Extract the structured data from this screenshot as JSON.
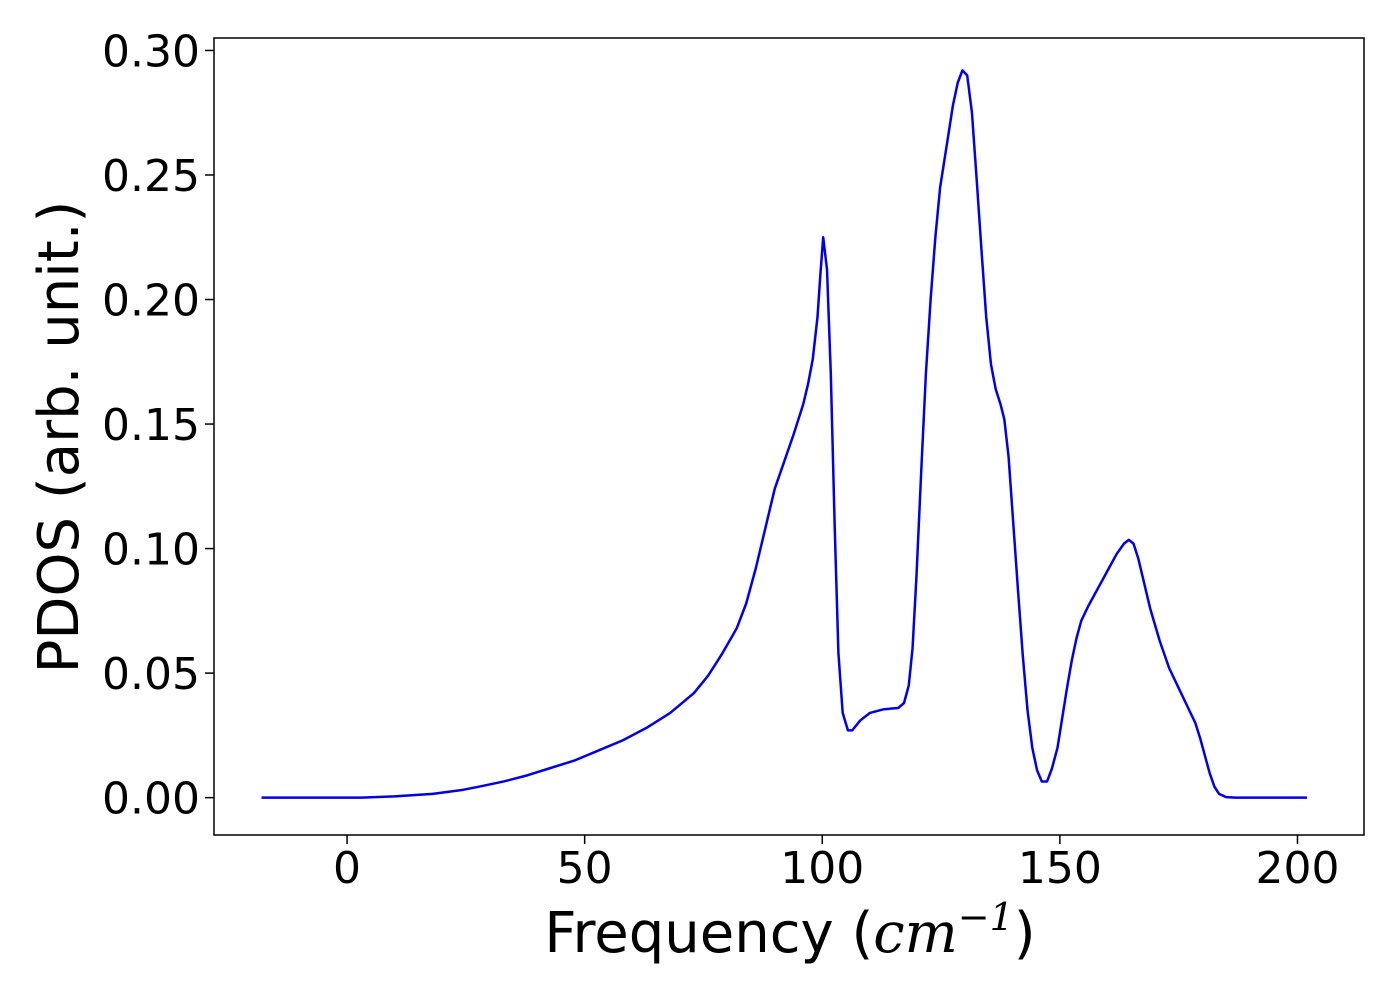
{
  "chart_data": {
    "type": "line",
    "title": "",
    "xlabel": {
      "prefix": "Frequency (",
      "unit": "cm",
      "exponent": "−1",
      "suffix": ")"
    },
    "ylabel": "PDOS (arb. unit.)",
    "xlim": [
      -28,
      214
    ],
    "ylim": [
      -0.015,
      0.305
    ],
    "xticks": [
      {
        "value": 0,
        "label": "0"
      },
      {
        "value": 50,
        "label": "50"
      },
      {
        "value": 100,
        "label": "100"
      },
      {
        "value": 150,
        "label": "150"
      },
      {
        "value": 200,
        "label": "200"
      }
    ],
    "yticks": [
      {
        "value": 0,
        "label": "0.00"
      },
      {
        "value": 0.05,
        "label": "0.05"
      },
      {
        "value": 0.1,
        "label": "0.10"
      },
      {
        "value": 0.15,
        "label": "0.15"
      },
      {
        "value": 0.2,
        "label": "0.20"
      },
      {
        "value": 0.25,
        "label": "0.25"
      },
      {
        "value": 0.3,
        "label": "0.30"
      }
    ],
    "grid": false,
    "legend": "none",
    "series": [
      {
        "color": "#0000ee",
        "points": [
          [
            -18,
            0
          ],
          [
            0,
            0
          ],
          [
            3,
            0
          ],
          [
            10,
            0.0005
          ],
          [
            18,
            0.0015
          ],
          [
            24,
            0.003
          ],
          [
            28,
            0.0045
          ],
          [
            33,
            0.0065
          ],
          [
            38,
            0.009
          ],
          [
            43,
            0.012
          ],
          [
            48,
            0.015
          ],
          [
            53,
            0.019
          ],
          [
            58,
            0.023
          ],
          [
            63,
            0.028
          ],
          [
            68,
            0.034
          ],
          [
            73,
            0.042
          ],
          [
            76,
            0.049
          ],
          [
            79,
            0.058
          ],
          [
            82,
            0.068
          ],
          [
            84,
            0.078
          ],
          [
            86,
            0.092
          ],
          [
            88,
            0.108
          ],
          [
            90,
            0.124
          ],
          [
            92,
            0.135
          ],
          [
            94,
            0.146
          ],
          [
            96,
            0.158
          ],
          [
            97,
            0.166
          ],
          [
            98,
            0.176
          ],
          [
            99,
            0.193
          ],
          [
            99.6,
            0.21
          ],
          [
            100.2,
            0.225
          ],
          [
            101,
            0.212
          ],
          [
            101.8,
            0.17
          ],
          [
            102.6,
            0.11
          ],
          [
            103.4,
            0.058
          ],
          [
            104.3,
            0.034
          ],
          [
            105.4,
            0.027
          ],
          [
            106.3,
            0.027
          ],
          [
            108,
            0.031
          ],
          [
            110,
            0.034
          ],
          [
            113,
            0.0355
          ],
          [
            116,
            0.036
          ],
          [
            117.2,
            0.038
          ],
          [
            118.2,
            0.045
          ],
          [
            119,
            0.06
          ],
          [
            119.8,
            0.088
          ],
          [
            120.8,
            0.13
          ],
          [
            121.8,
            0.17
          ],
          [
            122.8,
            0.2
          ],
          [
            123.8,
            0.225
          ],
          [
            124.8,
            0.245
          ],
          [
            126.2,
            0.262
          ],
          [
            127.5,
            0.278
          ],
          [
            128.5,
            0.287
          ],
          [
            129.5,
            0.292
          ],
          [
            130.5,
            0.29
          ],
          [
            131.5,
            0.275
          ],
          [
            132.5,
            0.248
          ],
          [
            133.5,
            0.22
          ],
          [
            134.5,
            0.193
          ],
          [
            135.5,
            0.174
          ],
          [
            136.5,
            0.164
          ],
          [
            137.5,
            0.158
          ],
          [
            138.3,
            0.152
          ],
          [
            139.2,
            0.137
          ],
          [
            140.2,
            0.11
          ],
          [
            141.2,
            0.083
          ],
          [
            142.2,
            0.057
          ],
          [
            143.2,
            0.035
          ],
          [
            144.2,
            0.02
          ],
          [
            145.2,
            0.011
          ],
          [
            146.2,
            0.0065
          ],
          [
            147.3,
            0.0065
          ],
          [
            148.3,
            0.0115
          ],
          [
            149.5,
            0.02
          ],
          [
            150.5,
            0.032
          ],
          [
            151.5,
            0.044
          ],
          [
            152.5,
            0.055
          ],
          [
            153.5,
            0.064
          ],
          [
            154.5,
            0.071
          ],
          [
            156,
            0.077
          ],
          [
            158,
            0.084
          ],
          [
            160,
            0.091
          ],
          [
            162,
            0.098
          ],
          [
            163.5,
            0.102
          ],
          [
            164.5,
            0.1035
          ],
          [
            165.5,
            0.102
          ],
          [
            166.5,
            0.096
          ],
          [
            167.5,
            0.088
          ],
          [
            169,
            0.076
          ],
          [
            171,
            0.063
          ],
          [
            173,
            0.052
          ],
          [
            175,
            0.044
          ],
          [
            177,
            0.036
          ],
          [
            178.5,
            0.03
          ],
          [
            179.5,
            0.024
          ],
          [
            180.5,
            0.017
          ],
          [
            181.5,
            0.01
          ],
          [
            182.5,
            0.0045
          ],
          [
            183.5,
            0.0015
          ],
          [
            185,
            0.0002
          ],
          [
            187,
            0
          ],
          [
            190,
            0
          ],
          [
            202,
            0
          ]
        ]
      }
    ]
  }
}
